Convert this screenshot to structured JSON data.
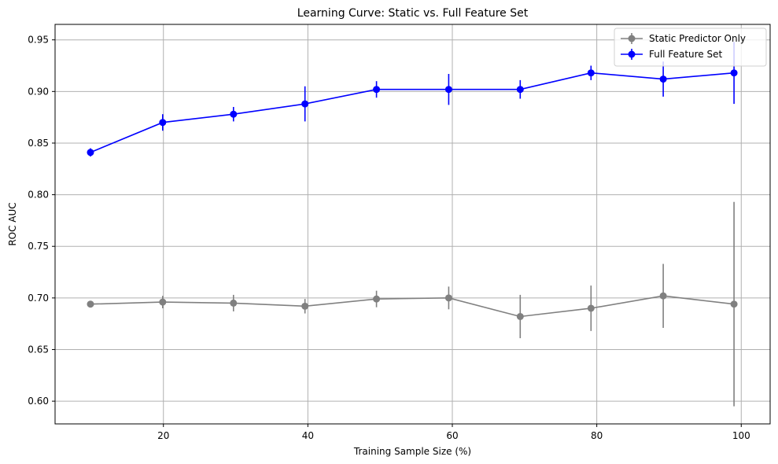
{
  "chart_data": {
    "type": "line",
    "title": "Learning Curve: Static vs. Full Feature Set",
    "xlabel": "Training Sample Size (%)",
    "ylabel": "ROC AUC",
    "xlim": [
      5,
      104
    ],
    "ylim": [
      0.578,
      0.965
    ],
    "x_ticks": [
      20,
      40,
      60,
      80,
      100
    ],
    "y_ticks": [
      0.6,
      0.65,
      0.7,
      0.75,
      0.8,
      0.85,
      0.9,
      0.95
    ],
    "x_tick_labels": [
      "20",
      "40",
      "60",
      "80",
      "100"
    ],
    "y_tick_labels": [
      "0.60",
      "0.65",
      "0.70",
      "0.75",
      "0.80",
      "0.85",
      "0.90",
      "0.95"
    ],
    "grid": true,
    "legend_position": "top-right",
    "x": [
      9.9,
      19.9,
      29.7,
      39.6,
      49.5,
      59.5,
      69.4,
      79.2,
      89.2,
      99.0
    ],
    "series": [
      {
        "name": "Static Predictor Only",
        "color": "#808080",
        "values": [
          0.694,
          0.696,
          0.695,
          0.692,
          0.699,
          0.7,
          0.682,
          0.69,
          0.702,
          0.694
        ],
        "errors": [
          0.002,
          0.006,
          0.008,
          0.007,
          0.008,
          0.011,
          0.021,
          0.022,
          0.031,
          0.099
        ]
      },
      {
        "name": "Full Feature Set",
        "color": "#0000ff",
        "values": [
          0.841,
          0.87,
          0.878,
          0.888,
          0.902,
          0.902,
          0.902,
          0.918,
          0.912,
          0.918
        ],
        "errors": [
          0.004,
          0.008,
          0.007,
          0.017,
          0.008,
          0.015,
          0.009,
          0.007,
          0.017,
          0.03
        ]
      }
    ]
  }
}
